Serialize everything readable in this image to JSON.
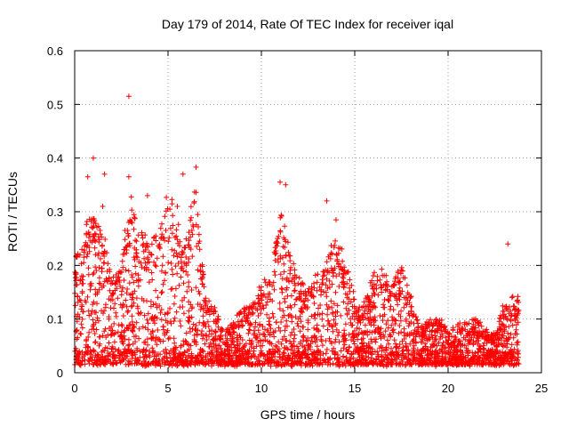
{
  "chart_data": {
    "type": "scatter",
    "title": "Day 179 of 2014, Rate Of TEC Index for receiver iqal",
    "xlabel": "GPS time / hours",
    "ylabel": "ROTI / TECUs",
    "xlim": [
      0,
      25
    ],
    "ylim": [
      0,
      0.6
    ],
    "xticks": [
      0,
      5,
      10,
      15,
      20,
      25
    ],
    "xtick_labels": [
      "0",
      "5",
      "10",
      "15",
      "20",
      "25"
    ],
    "yticks": [
      0,
      0.1,
      0.2,
      0.3,
      0.4,
      0.5,
      0.6
    ],
    "ytick_labels": [
      "0",
      "0.1",
      "0.2",
      "0.3",
      "0.4",
      "0.5",
      "0.6"
    ],
    "grid": true,
    "marker": "+",
    "color": "#ff0000",
    "data_extent_hours": [
      0,
      23.8
    ],
    "envelope": {
      "description": "approximate upper envelope of ROTI values (dense scatter) by hour",
      "x": [
        0,
        0.5,
        1,
        1.5,
        2,
        2.5,
        3,
        3.5,
        4,
        4.5,
        5,
        5.5,
        6,
        6.5,
        7,
        7.5,
        8,
        8.5,
        9,
        9.5,
        10,
        10.5,
        11,
        11.5,
        12,
        12.5,
        13,
        13.5,
        14,
        14.5,
        15,
        15.5,
        16,
        16.5,
        17,
        17.5,
        18,
        18.5,
        19,
        19.5,
        20,
        20.5,
        21,
        21.5,
        22,
        22.5,
        23,
        23.5,
        23.8
      ],
      "y": [
        0.2,
        0.26,
        0.3,
        0.26,
        0.17,
        0.2,
        0.34,
        0.26,
        0.24,
        0.25,
        0.34,
        0.27,
        0.25,
        0.35,
        0.14,
        0.12,
        0.07,
        0.1,
        0.12,
        0.13,
        0.16,
        0.18,
        0.3,
        0.22,
        0.17,
        0.16,
        0.18,
        0.2,
        0.26,
        0.2,
        0.14,
        0.13,
        0.18,
        0.19,
        0.16,
        0.2,
        0.14,
        0.08,
        0.1,
        0.1,
        0.08,
        0.09,
        0.09,
        0.1,
        0.08,
        0.07,
        0.13,
        0.14,
        0.14
      ]
    },
    "outliers": [
      {
        "x": 2.9,
        "y": 0.515
      },
      {
        "x": 1.0,
        "y": 0.4
      },
      {
        "x": 6.5,
        "y": 0.383
      },
      {
        "x": 5.8,
        "y": 0.37
      },
      {
        "x": 1.6,
        "y": 0.37
      },
      {
        "x": 2.9,
        "y": 0.365
      },
      {
        "x": 11.0,
        "y": 0.355
      },
      {
        "x": 0.7,
        "y": 0.365
      },
      {
        "x": 3.9,
        "y": 0.33
      },
      {
        "x": 13.5,
        "y": 0.32
      },
      {
        "x": 1.5,
        "y": 0.31
      },
      {
        "x": 5.5,
        "y": 0.31
      },
      {
        "x": 11.3,
        "y": 0.35
      },
      {
        "x": 23.2,
        "y": 0.24
      },
      {
        "x": 14.0,
        "y": 0.285
      }
    ]
  }
}
